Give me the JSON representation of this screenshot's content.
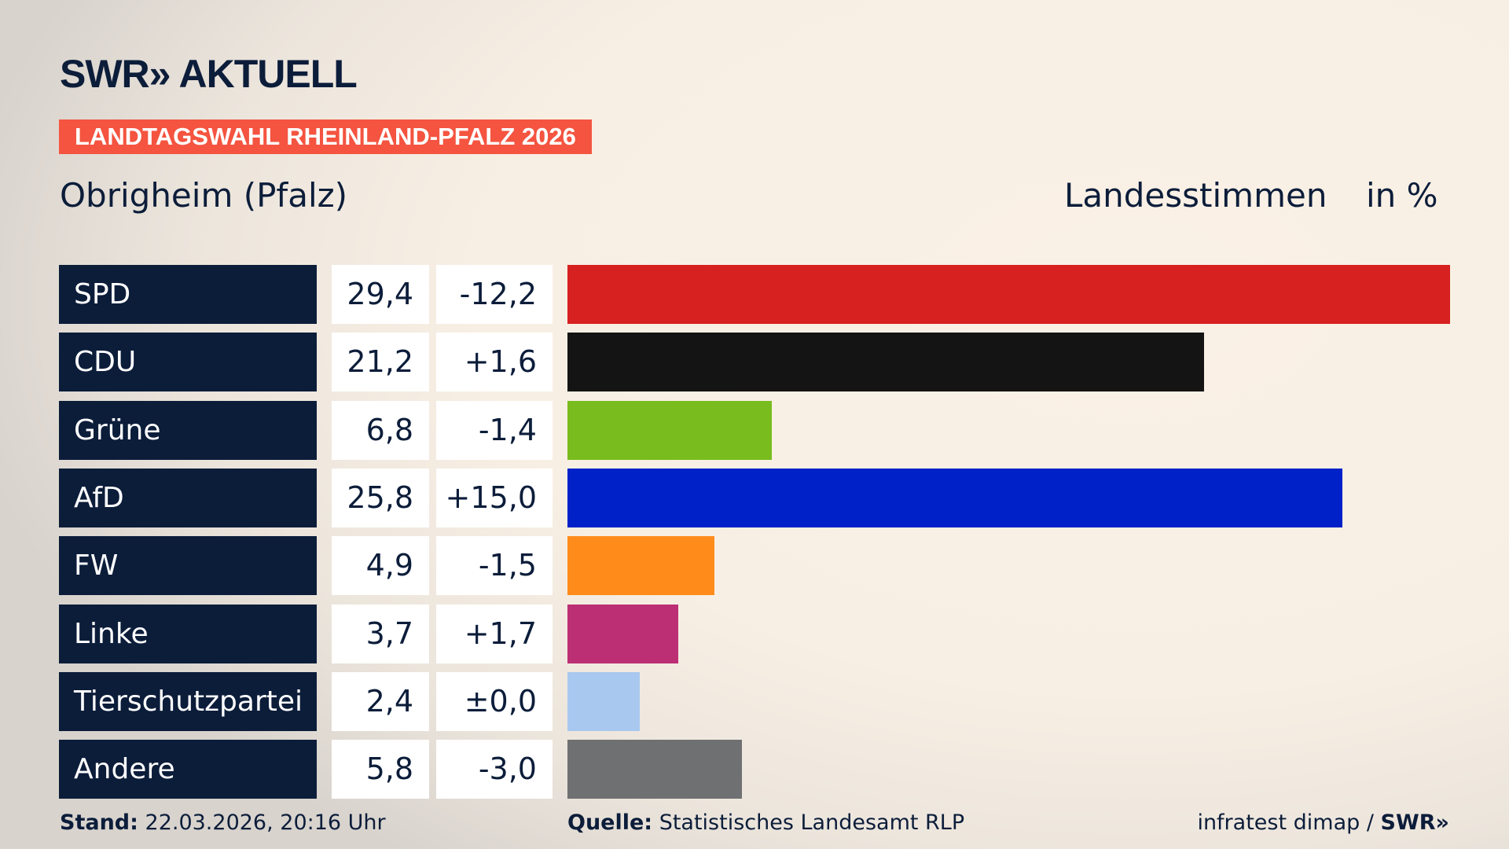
{
  "header": {
    "logo": "SWR» AKTUELL",
    "banner": "LANDTAGSWAHL RHEINLAND-PFALZ 2026",
    "subtitle": "Obrigheim (Pfalz)",
    "column_label": "Landesstimmen",
    "unit_label": "in %"
  },
  "chart_data": {
    "type": "bar",
    "orientation": "horizontal",
    "categories": [
      "SPD",
      "CDU",
      "Grüne",
      "AfD",
      "FW",
      "Linke",
      "Tierschutzpartei",
      "Andere"
    ],
    "values": [
      29.4,
      21.2,
      6.8,
      25.8,
      4.9,
      3.7,
      2.4,
      5.8
    ],
    "value_labels": [
      "29,4",
      "21,2",
      "6,8",
      "25,8",
      "4,9",
      "3,7",
      "2,4",
      "5,8"
    ],
    "changes": [
      "-12,2",
      "+1,6",
      "-1,4",
      "+15,0",
      "-1,5",
      "+1,7",
      "±0,0",
      "-3,0"
    ],
    "colors": [
      "#d72020",
      "#141414",
      "#78bc1e",
      "#0021c8",
      "#ff8c1a",
      "#bc2f74",
      "#a9c8ef",
      "#6f7072"
    ],
    "title": "Landesstimmen",
    "unit": "in %"
  },
  "footer": {
    "stand_label": "Stand:",
    "stand_value": "22.03.2026, 20:16 Uhr",
    "source_label": "Quelle:",
    "source_value": "Statistisches Landesamt RLP",
    "credit": "infratest dimap / ",
    "credit_logo": "SWR»"
  }
}
